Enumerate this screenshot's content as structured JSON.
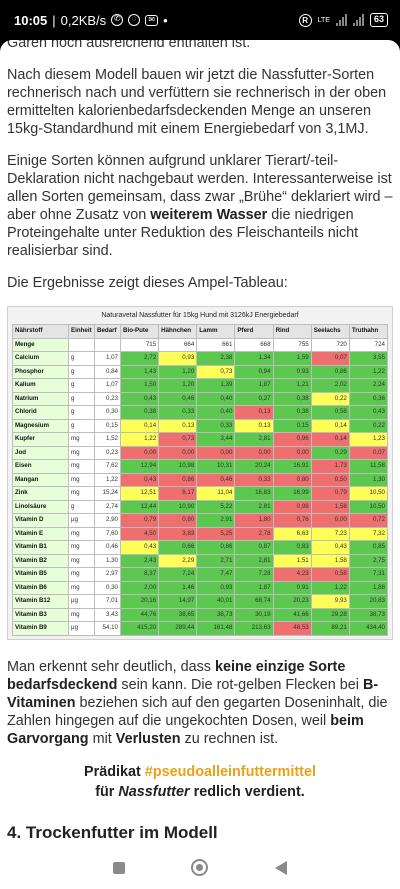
{
  "status": {
    "time": "10:05",
    "speed": "0,2KB/s",
    "lte": "LTE",
    "battery": "63"
  },
  "article": {
    "line_top": "Garen noch ausreichend enthalten ist.",
    "p1": "Nach diesem Modell bauen wir jetzt die Nassfutter-Sorten rechnerisch nach und verfüttern sie rechnerisch in der oben ermittelten kalorienbedarfsdeckenden Menge an unseren 15kg-Standardhund mit einem Energiebedarf von 3,1MJ.",
    "p2_a": "Einige Sorten können aufgrund unklarer Tierart/-teil-Deklaration nicht nachgebaut werden. Interessanterweise ist allen Sorten gemeinsam, dass zwar „Brühe“ deklariert wird – aber ohne Zusatz von ",
    "p2_b": "weiterem Wasser",
    "p2_c": " die niedrigen Proteingehalte unter Reduktion des Fleischanteils nicht realisierbar sind.",
    "p3": "Die Ergebnisse zeigt dieses Ampel-Tableau:",
    "p4_a": "Man erkennt sehr deutlich, dass ",
    "p4_b": "keine einzige Sorte bedarfsdeckend",
    "p4_c": " sein kann. Die rot-gelben Flecken bei ",
    "p4_d": "B-Vitaminen",
    "p4_e": " beziehen sich auf den gegarten Doseninhalt, die Zahlen hingegen auf die ungekochten Dosen, weil ",
    "p4_f": "beim Garvorgang",
    "p4_g": " mit ",
    "p4_h": "Verlusten",
    "p4_i": " zu rechnen ist.",
    "note_a": "Prädikat ",
    "note_tag": "#pseudoalleinfuttermittel",
    "note_b": "für ",
    "note_c": "Nassfutter",
    "note_d": " redlich verdient.",
    "next_head": "4. Trockenfutter im Modell"
  },
  "tableau": {
    "title": "Naturavetal Nassfutter für 15kg Hund mit 3126kJ Energiebedarf",
    "headers": [
      "Nährstoff",
      "Einheit",
      "Bedarf",
      "Bio-Pute",
      "Hähnchen",
      "Lamm",
      "Pferd",
      "Rind",
      "Seelachs",
      "Truthahn"
    ],
    "rows": [
      {
        "name": "Menge",
        "unit": "",
        "bed": "",
        "v": [
          "715",
          "664",
          "661",
          "668",
          "755",
          "720",
          "724"
        ],
        "c": [
          "w",
          "w",
          "w",
          "w",
          "w",
          "w",
          "w"
        ]
      },
      {
        "name": "Calcium",
        "unit": "g",
        "bed": "1,07",
        "v": [
          "2,72",
          "0,93",
          "2,38",
          "1,34",
          "1,59",
          "0,07",
          "3,55"
        ],
        "c": [
          "g",
          "y",
          "g",
          "g",
          "g",
          "r",
          "g"
        ]
      },
      {
        "name": "Phosphor",
        "unit": "g",
        "bed": "0,84",
        "v": [
          "1,43",
          "1,20",
          "0,73",
          "0,94",
          "0,93",
          "0,86",
          "1,22"
        ],
        "c": [
          "g",
          "g",
          "y",
          "g",
          "g",
          "g",
          "g"
        ]
      },
      {
        "name": "Kalium",
        "unit": "g",
        "bed": "1,07",
        "v": [
          "1,50",
          "1,20",
          "1,39",
          "1,87",
          "1,21",
          "2,02",
          "2,24"
        ],
        "c": [
          "g",
          "g",
          "g",
          "g",
          "g",
          "g",
          "g"
        ]
      },
      {
        "name": "Natrium",
        "unit": "g",
        "bed": "0,23",
        "v": [
          "0,43",
          "0,46",
          "0,40",
          "0,27",
          "0,38",
          "0,22",
          "0,36"
        ],
        "c": [
          "g",
          "g",
          "g",
          "g",
          "g",
          "y",
          "g"
        ]
      },
      {
        "name": "Chlorid",
        "unit": "g",
        "bed": "0,30",
        "v": [
          "0,38",
          "0,33",
          "0,40",
          "0,13",
          "0,38",
          "0,58",
          "0,43"
        ],
        "c": [
          "g",
          "g",
          "g",
          "r",
          "g",
          "g",
          "g"
        ]
      },
      {
        "name": "Magnesium",
        "unit": "g",
        "bed": "0,15",
        "v": [
          "0,14",
          "0,13",
          "0,33",
          "0,13",
          "0,15",
          "0,14",
          "0,22"
        ],
        "c": [
          "y",
          "y",
          "g",
          "y",
          "g",
          "y",
          "g"
        ]
      },
      {
        "name": "Kupfer",
        "unit": "mg",
        "bed": "1,52",
        "v": [
          "1,22",
          "0,73",
          "3,44",
          "2,81",
          "0,96",
          "0,14",
          "1,23"
        ],
        "c": [
          "y",
          "r",
          "g",
          "g",
          "r",
          "r",
          "y"
        ]
      },
      {
        "name": "Jod",
        "unit": "mg",
        "bed": "0,23",
        "v": [
          "0,00",
          "0,00",
          "0,00",
          "0,00",
          "0,00",
          "0,29",
          "0,07"
        ],
        "c": [
          "r",
          "r",
          "r",
          "r",
          "r",
          "g",
          "r"
        ]
      },
      {
        "name": "Eisen",
        "unit": "mg",
        "bed": "7,62",
        "v": [
          "12,94",
          "10,98",
          "10,31",
          "20,24",
          "16,91",
          "1,73",
          "11,58"
        ],
        "c": [
          "g",
          "g",
          "g",
          "g",
          "g",
          "r",
          "g"
        ]
      },
      {
        "name": "Mangan",
        "unit": "mg",
        "bed": "1,22",
        "v": [
          "0,43",
          "0,86",
          "0,46",
          "0,33",
          "0,80",
          "0,50",
          "1,30"
        ],
        "c": [
          "r",
          "r",
          "r",
          "r",
          "r",
          "r",
          "g"
        ]
      },
      {
        "name": "Zink",
        "unit": "mg",
        "bed": "15,24",
        "v": [
          "12,51",
          "8,17",
          "11,04",
          "16,83",
          "16,99",
          "0,79",
          "10,50"
        ],
        "c": [
          "y",
          "r",
          "y",
          "g",
          "g",
          "r",
          "y"
        ]
      },
      {
        "name": "Linolsäure",
        "unit": "g",
        "bed": "2,74",
        "v": [
          "12,44",
          "10,90",
          "5,22",
          "2,81",
          "0,98",
          "1,58",
          "10,50"
        ],
        "c": [
          "g",
          "g",
          "g",
          "g",
          "r",
          "r",
          "g"
        ]
      },
      {
        "name": "Vitamin D",
        "unit": "µg",
        "bed": "2,90",
        "v": [
          "0,79",
          "0,80",
          "2,91",
          "1,80",
          "0,76",
          "0,00",
          "0,72"
        ],
        "c": [
          "r",
          "r",
          "g",
          "r",
          "r",
          "r",
          "r"
        ]
      },
      {
        "name": "Vitamin E",
        "unit": "mg",
        "bed": "7,60",
        "v": [
          "4,50",
          "3,83",
          "5,25",
          "2,78",
          "6,63",
          "7,23",
          "7,32"
        ],
        "c": [
          "r",
          "r",
          "r",
          "r",
          "y",
          "y",
          "y"
        ]
      },
      {
        "name": "Vitamin B1",
        "unit": "mg",
        "bed": "0,46",
        "v": [
          "0,43",
          "0,66",
          "0,86",
          "0,87",
          "0,83",
          "0,43",
          "0,85"
        ],
        "c": [
          "y",
          "g",
          "g",
          "g",
          "g",
          "y",
          "g"
        ]
      },
      {
        "name": "Vitamin B2",
        "unit": "mg",
        "bed": "1,30",
        "v": [
          "2,43",
          "2,29",
          "2,71",
          "2,81",
          "1,51",
          "1,58",
          "2,75"
        ],
        "c": [
          "g",
          "y",
          "g",
          "g",
          "y",
          "y",
          "g"
        ]
      },
      {
        "name": "Vitamin B5",
        "unit": "mg",
        "bed": "2,97",
        "v": [
          "8,37",
          "7,24",
          "7,47",
          "7,28",
          "4,23",
          "0,58",
          "7,31"
        ],
        "c": [
          "g",
          "g",
          "g",
          "g",
          "r",
          "r",
          "g"
        ]
      },
      {
        "name": "Vitamin B6",
        "unit": "mg",
        "bed": "0,30",
        "v": [
          "2,00",
          "1,46",
          "0,93",
          "1,87",
          "0,91",
          "1,22",
          "1,88"
        ],
        "c": [
          "g",
          "g",
          "g",
          "g",
          "g",
          "g",
          "g"
        ]
      },
      {
        "name": "Vitamin B12",
        "unit": "µg",
        "bed": "7,01",
        "v": [
          "20,16",
          "14,97",
          "40,01",
          "68,74",
          "20,23",
          "9,93",
          "20,83"
        ],
        "c": [
          "g",
          "g",
          "g",
          "g",
          "g",
          "y",
          "g"
        ]
      },
      {
        "name": "Vitamin B3",
        "unit": "mg",
        "bed": "3,43",
        "v": [
          "44,76",
          "38,65",
          "38,73",
          "30,19",
          "41,66",
          "29,28",
          "38,73"
        ],
        "c": [
          "g",
          "g",
          "g",
          "g",
          "g",
          "g",
          "g"
        ]
      },
      {
        "name": "Vitamin B9",
        "unit": "µg",
        "bed": "54,10",
        "v": [
          "415,20",
          "289,44",
          "161,48",
          "213,63",
          "48,53",
          "89,21",
          "434,40"
        ],
        "c": [
          "g",
          "g",
          "g",
          "g",
          "r",
          "g",
          "g"
        ]
      }
    ]
  }
}
